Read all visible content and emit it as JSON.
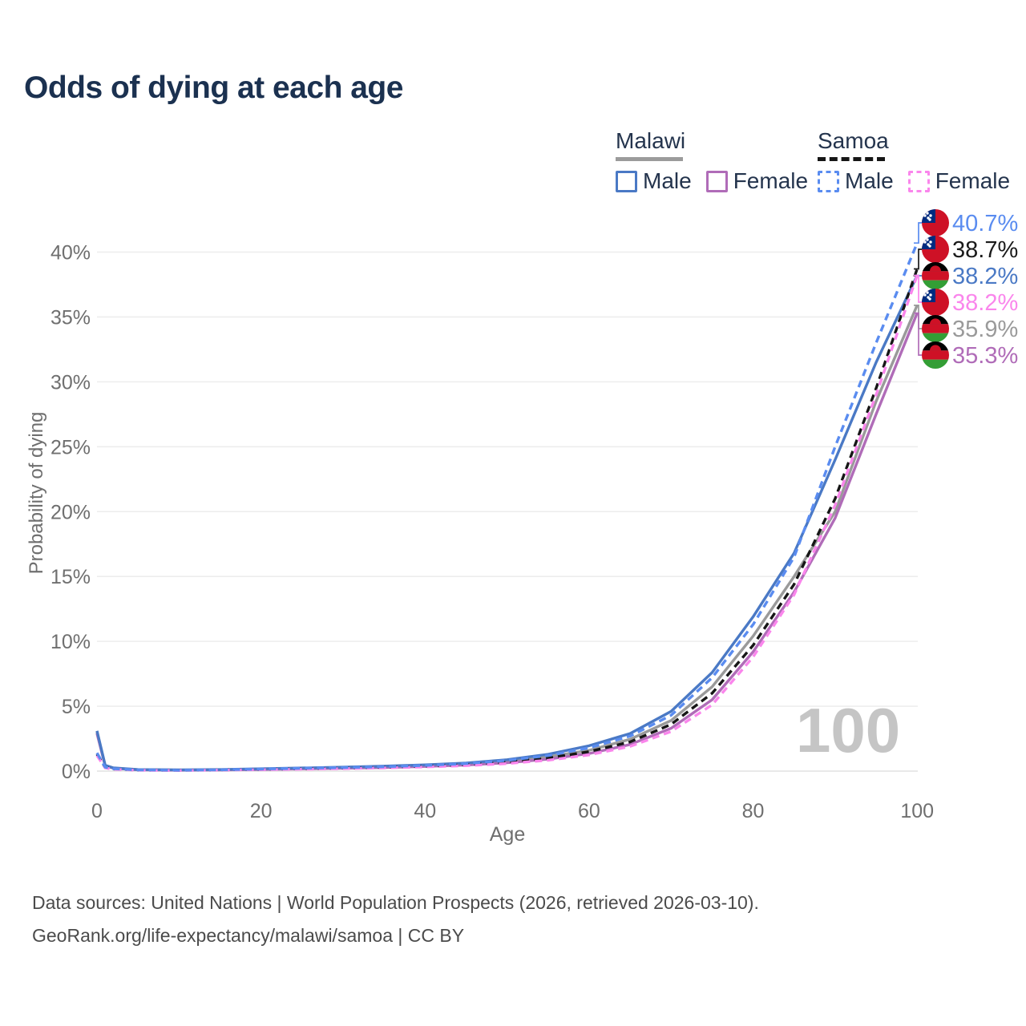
{
  "title": "Odds of dying at each age",
  "watermark": "100",
  "legend": {
    "groups": [
      {
        "label": "Malawi",
        "underline_style": "solid",
        "underline_color": "#9b9b9b",
        "items": [
          {
            "label": "Male",
            "color": "#4a79c5",
            "dashed": false
          },
          {
            "label": "Female",
            "color": "#b06cb8",
            "dashed": false
          }
        ]
      },
      {
        "label": "Samoa",
        "underline_style": "dashed",
        "underline_color": "#161616",
        "items": [
          {
            "label": "Male",
            "color": "#5a8cf0",
            "dashed": true
          },
          {
            "label": "Female",
            "color": "#fa86ec",
            "dashed": true
          }
        ]
      }
    ]
  },
  "source": {
    "line1": "Data sources: United Nations | World Population Prospects (2026, retrieved 2026-03-10).",
    "line2": "GeoRank.org/life-expectancy/malawi/samoa | CC BY"
  },
  "chart_data": {
    "type": "line",
    "xlabel": "Age",
    "ylabel": "Probability of dying",
    "xlim": [
      0,
      100
    ],
    "ylim": [
      0,
      43
    ],
    "xticks": [
      0,
      20,
      40,
      60,
      80,
      100
    ],
    "yticks": [
      0,
      5,
      10,
      15,
      20,
      25,
      30,
      35,
      40
    ],
    "grid": true,
    "legend_position": "top-right",
    "ages": [
      0,
      1,
      2,
      5,
      10,
      15,
      20,
      25,
      30,
      35,
      40,
      45,
      50,
      55,
      60,
      65,
      70,
      75,
      80,
      85,
      90,
      95,
      100
    ],
    "series": [
      {
        "name": "Malawi Both sexes",
        "country": "Malawi",
        "sex": "both",
        "color": "#9a9a9a",
        "dashed": false,
        "values": [
          3.0,
          0.43,
          0.23,
          0.11,
          0.08,
          0.1,
          0.15,
          0.2,
          0.26,
          0.33,
          0.42,
          0.54,
          0.75,
          1.1,
          1.6,
          2.45,
          3.9,
          6.5,
          10.4,
          15.0,
          20.0,
          28.5,
          35.9
        ]
      },
      {
        "name": "Malawi Female",
        "country": "Malawi",
        "sex": "female",
        "color": "#b06cb8",
        "dashed": false,
        "values": [
          2.9,
          0.41,
          0.22,
          0.1,
          0.07,
          0.09,
          0.12,
          0.17,
          0.22,
          0.28,
          0.36,
          0.47,
          0.64,
          0.92,
          1.35,
          2.05,
          3.3,
          5.5,
          9.2,
          13.8,
          19.5,
          27.5,
          35.3
        ]
      },
      {
        "name": "Malawi Male",
        "country": "Malawi",
        "sex": "male",
        "color": "#4a79c5",
        "dashed": false,
        "values": [
          3.1,
          0.45,
          0.25,
          0.12,
          0.09,
          0.12,
          0.18,
          0.24,
          0.3,
          0.38,
          0.48,
          0.62,
          0.88,
          1.3,
          1.95,
          2.9,
          4.6,
          7.6,
          11.9,
          16.8,
          24.0,
          31.5,
          38.2
        ]
      },
      {
        "name": "Samoa Both sexes",
        "country": "Samoa",
        "sex": "both",
        "color": "#161616",
        "dashed": true,
        "values": [
          1.3,
          0.28,
          0.16,
          0.08,
          0.06,
          0.09,
          0.13,
          0.18,
          0.23,
          0.29,
          0.37,
          0.49,
          0.69,
          1.0,
          1.5,
          2.25,
          3.6,
          6.0,
          9.7,
          14.4,
          21.0,
          29.5,
          38.7
        ]
      },
      {
        "name": "Samoa Female",
        "country": "Samoa",
        "sex": "female",
        "color": "#fa86ec",
        "dashed": true,
        "values": [
          1.2,
          0.25,
          0.14,
          0.07,
          0.05,
          0.08,
          0.11,
          0.15,
          0.19,
          0.25,
          0.32,
          0.42,
          0.58,
          0.84,
          1.25,
          1.9,
          3.05,
          5.1,
          8.8,
          13.6,
          20.5,
          29.0,
          38.2
        ]
      },
      {
        "name": "Samoa Male",
        "country": "Samoa",
        "sex": "male",
        "color": "#5a8cf0",
        "dashed": true,
        "values": [
          1.4,
          0.3,
          0.18,
          0.09,
          0.07,
          0.1,
          0.16,
          0.22,
          0.27,
          0.34,
          0.44,
          0.58,
          0.82,
          1.2,
          1.8,
          2.7,
          4.3,
          7.2,
          11.3,
          16.5,
          25.0,
          33.0,
          40.7
        ]
      }
    ],
    "end_labels": [
      {
        "text": "40.7%",
        "color": "#5a8cf0",
        "flag": "samoa",
        "series": "Samoa Male"
      },
      {
        "text": "38.7%",
        "color": "#1a1a1a",
        "flag": "samoa",
        "series": "Samoa Both sexes"
      },
      {
        "text": "38.2%",
        "color": "#4a79c5",
        "flag": "malawi",
        "series": "Malawi Male"
      },
      {
        "text": "38.2%",
        "color": "#fa86ec",
        "flag": "samoa",
        "series": "Samoa Female"
      },
      {
        "text": "35.9%",
        "color": "#9a9a9a",
        "flag": "malawi",
        "series": "Malawi Both sexes"
      },
      {
        "text": "35.3%",
        "color": "#b06cb8",
        "flag": "malawi",
        "series": "Malawi Female"
      }
    ]
  }
}
